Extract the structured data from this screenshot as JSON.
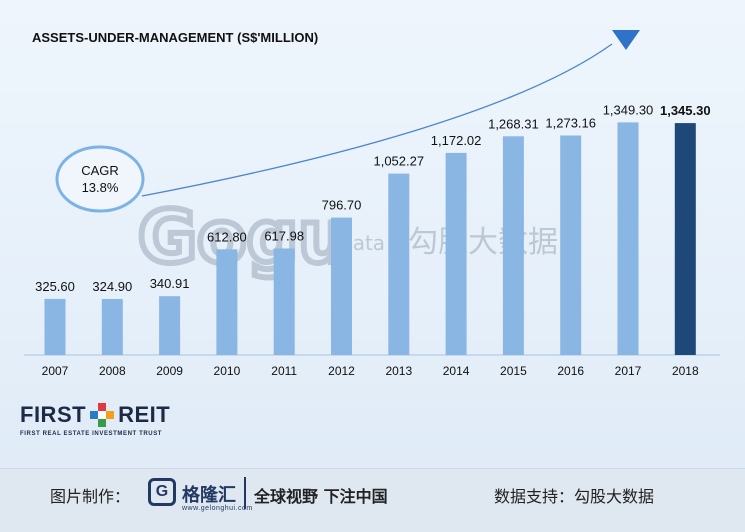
{
  "chart_data": {
    "type": "bar",
    "title": "ASSETS-UNDER-MANAGEMENT (S$'MILLION)",
    "categories": [
      "2007",
      "2008",
      "2009",
      "2010",
      "2011",
      "2012",
      "2013",
      "2014",
      "2015",
      "2016",
      "2017",
      "2018"
    ],
    "values": [
      325.6,
      324.9,
      340.91,
      612.8,
      617.98,
      796.7,
      1052.27,
      1172.02,
      1268.31,
      1273.16,
      1349.3,
      1345.3
    ],
    "value_labels": [
      "325.60",
      "324.90",
      "340.91",
      "612.80",
      "617.98",
      "796.70",
      "1,052.27",
      "1,172.02",
      "1,268.31",
      "1,273.16",
      "1,349.30",
      "1,345.30"
    ],
    "ylim": [
      0,
      1450
    ],
    "grid": false,
    "bar_color": "#8ab6e4",
    "highlight_color": "#1d4877",
    "highlight_index": 11,
    "annotation": {
      "line1": "CAGR",
      "line2": "13.8%"
    }
  },
  "watermark": {
    "logo": "Gogu",
    "sub": "data",
    "cn": "勾股大数据"
  },
  "brand": {
    "word1": "FIRST",
    "word2": "REIT",
    "tagline": "FIRST REAL ESTATE INVESTMENT TRUST",
    "colors": [
      "#e03a3e",
      "#f3a01a",
      "#3a9a48",
      "#2b7bc0"
    ]
  },
  "footer": {
    "label": "图片制作：",
    "logo_icon": "G",
    "brand": "格隆汇",
    "brand_url": "www.gelonghui.com",
    "slogan": "全球视野 下注中国",
    "right": "数据支持：勾股大数据"
  },
  "colors": {
    "title": "#111111",
    "arrow": "#2e73c8",
    "circle": "#7cb3e6",
    "axis": "#aac4e0"
  }
}
